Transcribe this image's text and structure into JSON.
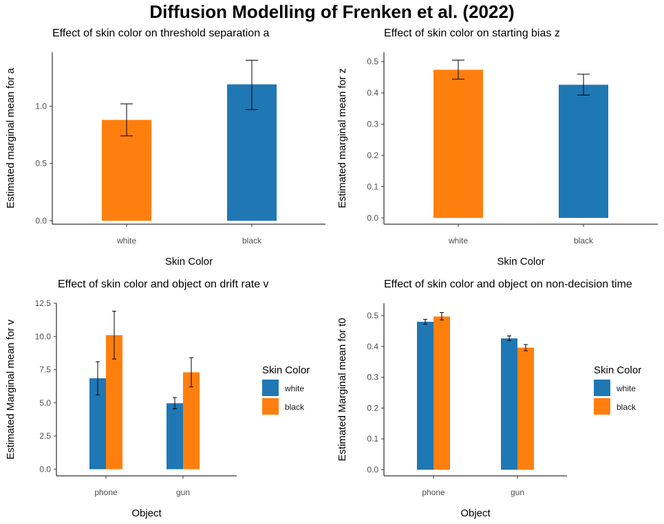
{
  "title": "Diffusion Modelling of Frenken et al. (2022)",
  "colors": {
    "white": "#ff7f0e",
    "black": "#1f77b4",
    "axis": "#000000",
    "tick_text": "#4d4d4d"
  },
  "chart_data": [
    {
      "type": "bar",
      "title": "Effect of skin color on threshold separation a",
      "xlabel": "Skin Color",
      "ylabel": "Estimated marginal mean for a",
      "categories": [
        "white",
        "black"
      ],
      "values": [
        0.88,
        1.19
      ],
      "error_low": [
        0.74,
        0.97
      ],
      "error_high": [
        1.02,
        1.4
      ],
      "bar_colors": [
        "#ff7f0e",
        "#1f77b4"
      ],
      "yticks": [
        0.0,
        0.5,
        1.0
      ],
      "ytick_labels": [
        "0.0",
        "0.5",
        "1.0"
      ],
      "ylim": [
        -0.03,
        1.47
      ],
      "grid": false
    },
    {
      "type": "bar",
      "title": "Effect of skin color on starting bias z",
      "xlabel": "Skin Color",
      "ylabel": "Estimated marginal mean for z",
      "categories": [
        "white",
        "black"
      ],
      "values": [
        0.474,
        0.426
      ],
      "error_low": [
        0.444,
        0.393
      ],
      "error_high": [
        0.505,
        0.46
      ],
      "bar_colors": [
        "#ff7f0e",
        "#1f77b4"
      ],
      "yticks": [
        0.0,
        0.1,
        0.2,
        0.3,
        0.4,
        0.5
      ],
      "ytick_labels": [
        "0.0",
        "0.1",
        "0.2",
        "0.3",
        "0.4",
        "0.5"
      ],
      "ylim": [
        -0.02,
        0.53
      ],
      "grid": false
    },
    {
      "type": "bar",
      "title": "Effect of skin color and object on drift rate v",
      "xlabel": "Object",
      "ylabel": "Estimated Marginal mean for v",
      "categories": [
        "phone",
        "gun"
      ],
      "series": [
        {
          "name": "white",
          "color": "#1f77b4",
          "values": [
            6.85,
            4.97
          ],
          "error_low": [
            5.6,
            4.55
          ],
          "error_high": [
            8.1,
            5.4
          ]
        },
        {
          "name": "black",
          "color": "#ff7f0e",
          "values": [
            10.1,
            7.3
          ],
          "error_low": [
            8.3,
            6.2
          ],
          "error_high": [
            11.9,
            8.4
          ]
        }
      ],
      "yticks": [
        0.0,
        2.5,
        5.0,
        7.5,
        10.0,
        12.5
      ],
      "ytick_labels": [
        "0.0",
        "2.5",
        "5.0",
        "7.5",
        "10.0",
        "12.5"
      ],
      "ylim": [
        -0.5,
        12.5
      ],
      "legend": {
        "title": "Skin Color",
        "position": "right"
      },
      "grid": false
    },
    {
      "type": "bar",
      "title": "Effect of skin color and object on non-decision time",
      "xlabel": "Object",
      "ylabel": "Estimated Marginal mean for t0",
      "categories": [
        "phone",
        "gun"
      ],
      "series": [
        {
          "name": "white",
          "color": "#1f77b4",
          "values": [
            0.48,
            0.426
          ],
          "error_low": [
            0.472,
            0.419
          ],
          "error_high": [
            0.488,
            0.434
          ]
        },
        {
          "name": "black",
          "color": "#ff7f0e",
          "values": [
            0.497,
            0.396
          ],
          "error_low": [
            0.486,
            0.386
          ],
          "error_high": [
            0.51,
            0.406
          ]
        }
      ],
      "yticks": [
        0.0,
        0.1,
        0.2,
        0.3,
        0.4,
        0.5
      ],
      "ytick_labels": [
        "0.0",
        "0.1",
        "0.2",
        "0.3",
        "0.4",
        "0.5"
      ],
      "ylim": [
        -0.02,
        0.54
      ],
      "legend": {
        "title": "Skin Color",
        "position": "right"
      },
      "grid": false
    }
  ]
}
